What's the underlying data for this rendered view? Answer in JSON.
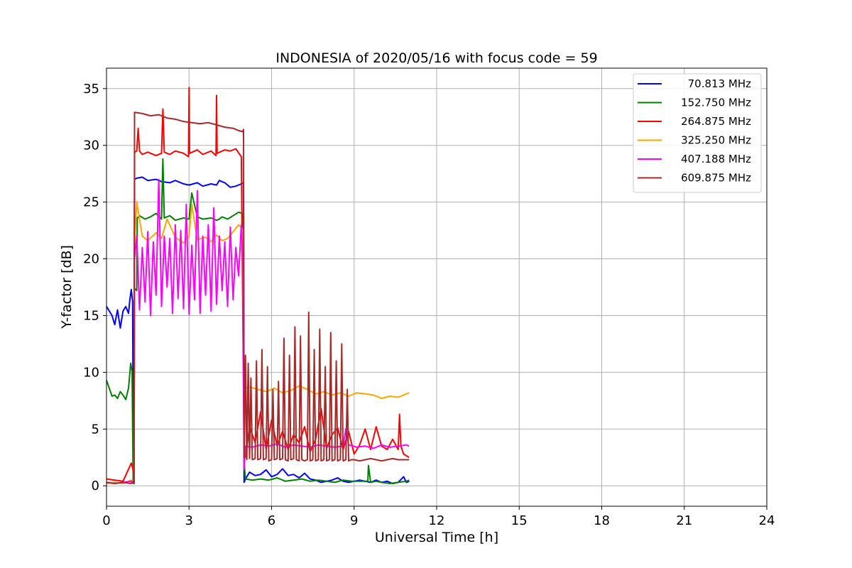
{
  "chart_data": {
    "type": "line",
    "title": "INDONESIA of 2020/05/16 with focus code = 59",
    "xlabel": "Universal Time [h]",
    "ylabel": "Y-factor [dB]",
    "xlim": [
      0,
      24
    ],
    "ylim": [
      -1.8,
      36.8
    ],
    "xticks": [
      0,
      3,
      6,
      9,
      12,
      15,
      18,
      21,
      24
    ],
    "yticks": [
      0,
      5,
      10,
      15,
      20,
      25,
      30,
      35
    ],
    "grid": true,
    "legend_position": "top-right",
    "series": [
      {
        "name": "70.813 MHz",
        "color": "#0000ff",
        "x": [
          0,
          0.2,
          0.3,
          0.4,
          0.5,
          0.6,
          0.7,
          0.8,
          0.85,
          0.9,
          0.95,
          0.98,
          1.0,
          1.02,
          1.1,
          1.3,
          1.5,
          1.8,
          2.0,
          2.3,
          2.5,
          2.8,
          3.0,
          3.3,
          3.5,
          3.8,
          4.0,
          4.1,
          4.3,
          4.5,
          4.7,
          4.9,
          4.98,
          5.0,
          5.05,
          5.2,
          5.4,
          5.6,
          5.8,
          6.0,
          6.2,
          6.4,
          6.6,
          6.8,
          7.0,
          7.2,
          7.4,
          7.6,
          7.8,
          8.0,
          8.2,
          8.4,
          8.6,
          8.8,
          9.0,
          9.2,
          9.4,
          9.6,
          9.8,
          10.0,
          10.2,
          10.4,
          10.6,
          10.8,
          10.9,
          11.0
        ],
        "y": [
          15.8,
          15.0,
          14.2,
          15.5,
          13.9,
          15.4,
          15.8,
          15.2,
          16.4,
          17.3,
          16.2,
          0.3,
          0.2,
          27.0,
          27.1,
          27.2,
          26.9,
          27.0,
          26.8,
          26.7,
          26.9,
          26.6,
          26.5,
          26.7,
          26.4,
          26.6,
          26.5,
          26.9,
          26.7,
          26.3,
          26.4,
          26.6,
          26.7,
          0.3,
          0.6,
          1.2,
          0.9,
          1.0,
          1.4,
          0.8,
          1.0,
          1.5,
          0.9,
          1.0,
          0.7,
          1.1,
          0.6,
          0.5,
          0.3,
          0.4,
          0.5,
          0.7,
          0.4,
          0.3,
          0.4,
          0.5,
          0.4,
          0.3,
          0.5,
          0.3,
          0.4,
          0.2,
          0.3,
          0.8,
          0.3,
          0.4
        ]
      },
      {
        "name": "152.750 MHz",
        "color": "#008000",
        "x": [
          0,
          0.1,
          0.2,
          0.3,
          0.4,
          0.5,
          0.6,
          0.7,
          0.8,
          0.88,
          0.93,
          0.97,
          1.0,
          1.02,
          1.1,
          1.12,
          1.2,
          1.4,
          1.6,
          1.8,
          2.0,
          2.05,
          2.1,
          2.3,
          2.5,
          2.8,
          3.0,
          3.1,
          3.3,
          3.5,
          3.8,
          4.0,
          4.1,
          4.2,
          4.4,
          4.6,
          4.8,
          4.95,
          5.0,
          5.05,
          5.3,
          5.6,
          5.9,
          6.2,
          6.5,
          6.8,
          7.1,
          7.4,
          7.7,
          8.0,
          8.3,
          8.6,
          8.9,
          9.2,
          9.5,
          9.52,
          9.6,
          9.8,
          10.0,
          10.3,
          10.6,
          10.9,
          11.0
        ],
        "y": [
          9.3,
          8.6,
          7.9,
          8.0,
          7.7,
          8.3,
          8.0,
          7.6,
          8.6,
          10.8,
          10.1,
          0.2,
          0.2,
          17.4,
          17.2,
          23.6,
          23.8,
          23.5,
          23.7,
          24.0,
          23.5,
          28.8,
          23.6,
          23.8,
          23.4,
          23.6,
          23.5,
          25.8,
          23.7,
          23.5,
          23.6,
          23.4,
          23.5,
          23.7,
          23.5,
          23.8,
          24.1,
          24.0,
          2.0,
          0.6,
          0.5,
          0.6,
          0.5,
          0.7,
          0.4,
          0.5,
          0.6,
          0.4,
          0.5,
          0.4,
          0.3,
          0.5,
          0.4,
          0.4,
          0.4,
          1.8,
          0.3,
          0.4,
          0.3,
          0.2,
          0.3,
          0.4,
          0.5
        ]
      },
      {
        "name": "264.875 MHz",
        "color": "#ff0000",
        "x": [
          0,
          0.3,
          0.6,
          0.9,
          0.96,
          1.0,
          1.02,
          1.1,
          1.15,
          1.2,
          1.3,
          1.5,
          1.8,
          2.0,
          2.05,
          2.1,
          2.3,
          2.5,
          2.8,
          2.98,
          3.0,
          3.02,
          3.3,
          3.5,
          3.8,
          3.98,
          4.0,
          4.02,
          4.3,
          4.5,
          4.7,
          4.9,
          5.0,
          5.05,
          5.2,
          5.4,
          5.6,
          5.8,
          6.0,
          6.2,
          6.4,
          6.6,
          6.8,
          7.0,
          7.2,
          7.4,
          7.6,
          7.8,
          8.0,
          8.2,
          8.4,
          8.6,
          8.8,
          9.0,
          9.2,
          9.4,
          9.6,
          9.8,
          10.0,
          10.2,
          10.4,
          10.6,
          10.65,
          10.7,
          10.8,
          11.0
        ],
        "y": [
          0.6,
          0.5,
          0.4,
          2.0,
          1.5,
          0.3,
          29.4,
          29.5,
          31.5,
          29.5,
          29.2,
          29.4,
          29.1,
          29.3,
          33.2,
          29.4,
          29.2,
          29.5,
          29.3,
          29.0,
          35.1,
          29.3,
          29.6,
          29.2,
          29.5,
          29.1,
          34.4,
          29.3,
          29.6,
          29.5,
          29.7,
          29.0,
          3.0,
          2.5,
          5.2,
          3.8,
          6.5,
          3.2,
          5.8,
          3.5,
          4.8,
          3.2,
          4.5,
          3.8,
          5.2,
          3.0,
          4.1,
          6.8,
          3.3,
          4.5,
          5.1,
          3.2,
          4.8,
          2.8,
          3.6,
          5.0,
          3.2,
          5.2,
          3.5,
          3.2,
          4.1,
          3.2,
          6.3,
          3.5,
          2.8,
          2.5
        ]
      },
      {
        "name": "325.250 MHz",
        "color": "#ffa500",
        "x": [
          0,
          0.3,
          0.6,
          0.9,
          0.98,
          1.0,
          1.02,
          1.1,
          1.3,
          1.5,
          1.8,
          2.0,
          2.2,
          2.5,
          2.8,
          3.0,
          3.1,
          3.3,
          3.6,
          3.8,
          4.0,
          4.2,
          4.4,
          4.6,
          4.8,
          4.95,
          5.0,
          5.05,
          5.2,
          5.5,
          5.8,
          6.1,
          6.4,
          6.7,
          7.0,
          7.3,
          7.6,
          7.9,
          8.2,
          8.5,
          8.8,
          9.1,
          9.4,
          9.7,
          10.0,
          10.3,
          10.6,
          10.9,
          11.0
        ],
        "y": [
          0.2,
          0.3,
          0.2,
          0.5,
          0.3,
          0.2,
          21.2,
          25.0,
          22.0,
          21.6,
          22.3,
          21.8,
          23.5,
          21.9,
          21.4,
          22.0,
          24.8,
          21.7,
          21.9,
          21.5,
          22.1,
          21.6,
          21.8,
          22.4,
          23.0,
          22.6,
          2.5,
          8.6,
          8.7,
          8.5,
          8.3,
          8.6,
          8.2,
          8.4,
          8.8,
          8.5,
          8.1,
          8.3,
          8.0,
          8.2,
          7.9,
          8.2,
          8.1,
          8.0,
          7.7,
          7.9,
          7.8,
          8.1,
          8.2
        ]
      },
      {
        "name": "407.188 MHz",
        "color": "#ff00ff",
        "x": [
          0,
          0.3,
          0.6,
          0.9,
          0.98,
          1.0,
          1.02,
          1.1,
          1.2,
          1.3,
          1.4,
          1.5,
          1.6,
          1.7,
          1.8,
          1.9,
          2.0,
          2.1,
          2.2,
          2.3,
          2.4,
          2.5,
          2.6,
          2.7,
          2.8,
          2.9,
          3.0,
          3.1,
          3.2,
          3.3,
          3.4,
          3.5,
          3.6,
          3.7,
          3.8,
          3.9,
          4.0,
          4.1,
          4.2,
          4.3,
          4.4,
          4.5,
          4.6,
          4.7,
          4.8,
          4.9,
          4.95,
          5.0,
          5.05,
          5.3,
          5.6,
          5.9,
          6.2,
          6.5,
          6.8,
          7.1,
          7.4,
          7.7,
          8.0,
          8.3,
          8.6,
          8.7,
          8.8,
          9.1,
          9.4,
          9.7,
          10.0,
          10.3,
          10.6,
          10.9,
          11.0
        ],
        "y": [
          0.3,
          0.2,
          0.3,
          0.4,
          0.2,
          0.2,
          20.0,
          22.0,
          15.5,
          21.0,
          16.2,
          22.4,
          15.0,
          21.5,
          16.8,
          27.0,
          15.8,
          22.0,
          17.5,
          21.8,
          15.2,
          23.0,
          16.5,
          22.5,
          15.6,
          24.8,
          15.1,
          21.2,
          16.4,
          26.0,
          15.2,
          22.0,
          16.8,
          23.0,
          15.4,
          24.5,
          16.0,
          22.0,
          17.2,
          21.5,
          15.8,
          22.8,
          16.4,
          21.0,
          18.5,
          23.0,
          20.0,
          1.5,
          3.5,
          3.4,
          3.6,
          3.5,
          3.7,
          3.4,
          3.6,
          3.5,
          3.4,
          3.6,
          3.5,
          3.4,
          3.5,
          5.0,
          3.6,
          3.4,
          3.5,
          3.3,
          3.6,
          3.4,
          3.5,
          3.6,
          3.5
        ]
      },
      {
        "name": "609.875 MHz",
        "color": "#a52a2a",
        "x": [
          0,
          0.3,
          0.6,
          0.9,
          0.98,
          1.0,
          1.02,
          1.3,
          1.6,
          1.9,
          2.2,
          2.5,
          2.8,
          3.1,
          3.4,
          3.7,
          4.0,
          4.3,
          4.6,
          4.8,
          4.95,
          4.98,
          5.0,
          5.05,
          5.1,
          5.15,
          5.2,
          5.25,
          5.3,
          5.4,
          5.45,
          5.5,
          5.6,
          5.65,
          5.7,
          5.8,
          5.85,
          5.9,
          6.0,
          6.05,
          6.1,
          6.2,
          6.25,
          6.3,
          6.4,
          6.45,
          6.5,
          6.6,
          6.65,
          6.7,
          6.8,
          6.85,
          6.9,
          7.0,
          7.05,
          7.1,
          7.2,
          7.3,
          7.35,
          7.4,
          7.5,
          7.55,
          7.6,
          7.7,
          7.75,
          7.8,
          7.9,
          7.95,
          8.0,
          8.1,
          8.15,
          8.2,
          8.3,
          8.35,
          8.4,
          8.5,
          8.55,
          8.6,
          8.7,
          8.75,
          8.8,
          8.9,
          9.0,
          9.2,
          9.4,
          9.6,
          9.8,
          10.0,
          10.2,
          10.4,
          10.6,
          10.8,
          11.0
        ],
        "y": [
          0.3,
          0.2,
          0.3,
          0.2,
          0.4,
          0.2,
          32.9,
          32.8,
          32.6,
          32.7,
          32.4,
          32.3,
          32.1,
          32.0,
          31.9,
          32.0,
          31.8,
          31.6,
          31.5,
          31.3,
          31.2,
          31.4,
          2.5,
          11.5,
          2.3,
          10.8,
          2.4,
          9.5,
          2.3,
          2.4,
          11.0,
          2.3,
          2.4,
          12.0,
          2.3,
          2.4,
          10.5,
          2.2,
          2.3,
          8.5,
          2.3,
          2.4,
          9.2,
          2.3,
          2.4,
          13.0,
          2.3,
          2.2,
          11.5,
          2.3,
          2.4,
          14.0,
          2.3,
          2.2,
          13.2,
          2.3,
          2.2,
          2.3,
          15.3,
          2.2,
          2.3,
          12.0,
          2.2,
          2.3,
          13.8,
          2.2,
          2.3,
          10.5,
          2.2,
          2.3,
          13.5,
          2.2,
          2.3,
          11.0,
          2.2,
          2.3,
          12.5,
          2.2,
          2.3,
          8.5,
          2.2,
          2.3,
          2.3,
          2.2,
          2.3,
          2.4,
          2.3,
          2.2,
          2.3,
          2.4,
          2.3,
          2.3,
          2.3
        ]
      }
    ]
  }
}
